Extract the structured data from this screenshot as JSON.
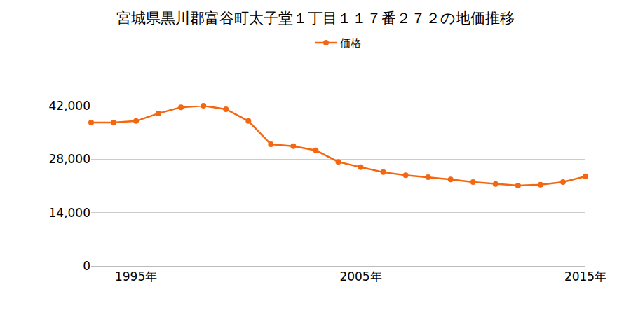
{
  "chart_data": {
    "type": "line",
    "title": "宮城県黒川郡富谷町太子堂１丁目１１７番２７２の地価推移",
    "x": [
      1993,
      1994,
      1995,
      1996,
      1997,
      1998,
      1999,
      2000,
      2001,
      2002,
      2003,
      2004,
      2005,
      2006,
      2007,
      2008,
      2009,
      2010,
      2011,
      2012,
      2013,
      2014,
      2015
    ],
    "series": [
      {
        "name": "価格",
        "color": "#f4660f",
        "values": [
          37600,
          37600,
          38000,
          40000,
          41600,
          42000,
          41100,
          38000,
          31900,
          31400,
          30300,
          27300,
          25900,
          24600,
          23800,
          23300,
          22700,
          22000,
          21500,
          21100,
          21300,
          22000,
          23500
        ]
      }
    ],
    "xlim": [
      1993,
      2015
    ],
    "xticks": [
      {
        "value": 1995,
        "label": "1995年"
      },
      {
        "value": 2005,
        "label": "2005年"
      },
      {
        "value": 2015,
        "label": "2015年"
      }
    ],
    "ylim": [
      0,
      42000
    ],
    "yticks": [
      0,
      {
        "value": 14000,
        "label": "14,000"
      },
      {
        "value": 28000,
        "label": "28,000"
      },
      {
        "value": 42000,
        "label": "42,000"
      }
    ],
    "grid": true,
    "legend": "top",
    "marker": "circle"
  }
}
